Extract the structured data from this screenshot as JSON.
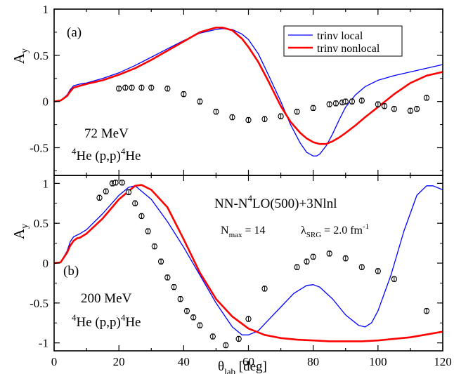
{
  "chart_data": [
    {
      "type": "line",
      "panel_label": "(a)",
      "energy_label": "72 MeV",
      "reaction": {
        "pre": "4",
        "mid": "He (p,p)",
        "post": "4",
        "tail": "He"
      },
      "ylabel": {
        "main": "A",
        "sub": "y"
      },
      "xlim": [
        0,
        120
      ],
      "ylim": [
        -0.8,
        1.0
      ],
      "yticks": [
        1,
        0.5,
        0,
        -0.5
      ],
      "ytick_labels": [
        "1",
        "0.5",
        "0",
        "-0.5"
      ],
      "legend": {
        "placement": "top-right",
        "entries": [
          "trinv local",
          "trinv nonlocal"
        ]
      },
      "series": [
        {
          "name": "trinv local",
          "color": "#0000ff",
          "x": [
            0,
            2,
            4,
            5,
            6,
            7,
            8,
            10,
            15,
            20,
            25,
            30,
            35,
            40,
            45,
            50,
            52,
            55,
            58,
            60,
            63,
            66,
            70,
            73,
            76,
            78,
            80,
            81,
            82,
            84,
            86,
            88,
            90,
            93,
            96,
            100,
            105,
            110,
            115,
            120
          ],
          "y": [
            0,
            0.01,
            0.07,
            0.13,
            0.17,
            0.18,
            0.19,
            0.2,
            0.25,
            0.31,
            0.39,
            0.48,
            0.57,
            0.66,
            0.74,
            0.78,
            0.79,
            0.78,
            0.73,
            0.67,
            0.52,
            0.3,
            0.0,
            -0.25,
            -0.45,
            -0.55,
            -0.59,
            -0.59,
            -0.57,
            -0.48,
            -0.35,
            -0.2,
            -0.06,
            0.07,
            0.16,
            0.23,
            0.28,
            0.32,
            0.36,
            0.4
          ]
        },
        {
          "name": "trinv nonlocal",
          "color": "#ff0000",
          "x": [
            0,
            2,
            4,
            5,
            6,
            7,
            8,
            10,
            15,
            20,
            25,
            30,
            35,
            40,
            45,
            50,
            52,
            55,
            58,
            60,
            63,
            66,
            70,
            73,
            76,
            78,
            80,
            82,
            84,
            86,
            88,
            90,
            93,
            96,
            100,
            105,
            110,
            115,
            120
          ],
          "y": [
            0,
            0.01,
            0.06,
            0.11,
            0.15,
            0.16,
            0.17,
            0.19,
            0.23,
            0.29,
            0.36,
            0.45,
            0.55,
            0.65,
            0.75,
            0.8,
            0.8,
            0.77,
            0.68,
            0.59,
            0.43,
            0.23,
            -0.05,
            -0.22,
            -0.34,
            -0.4,
            -0.44,
            -0.46,
            -0.46,
            -0.43,
            -0.39,
            -0.34,
            -0.26,
            -0.17,
            -0.06,
            0.08,
            0.2,
            0.28,
            0.32
          ]
        }
      ],
      "data_points": {
        "x": [
          20,
          22,
          24,
          27,
          30,
          35,
          40,
          45,
          50,
          55,
          60,
          65,
          70,
          75,
          80,
          85,
          87,
          89,
          90,
          92,
          95,
          100,
          102,
          105,
          110,
          112,
          115
        ],
        "y": [
          0.14,
          0.15,
          0.15,
          0.15,
          0.15,
          0.14,
          0.08,
          0.0,
          -0.11,
          -0.17,
          -0.2,
          -0.19,
          -0.16,
          -0.11,
          -0.07,
          -0.03,
          -0.02,
          -0.01,
          0.0,
          0.0,
          0.01,
          -0.03,
          -0.05,
          -0.08,
          -0.1,
          -0.08,
          0.04
        ]
      }
    },
    {
      "type": "line",
      "panel_label": "(b)",
      "energy_label": "200 MeV",
      "reaction": {
        "pre": "4",
        "mid": "He (p,p)",
        "post": "4",
        "tail": "He"
      },
      "ylabel": {
        "main": "A",
        "sub": "y"
      },
      "xlabel": {
        "main": "θ",
        "sub": "lab",
        "unit": " [deg]"
      },
      "xlim": [
        0,
        120
      ],
      "ylim": [
        -1.1,
        1.1
      ],
      "xticks": [
        0,
        20,
        40,
        60,
        80,
        100,
        120
      ],
      "xtick_labels": [
        "0",
        "20",
        "40",
        "60",
        "80",
        "100",
        "120"
      ],
      "yticks": [
        1,
        0.5,
        0,
        -0.5,
        -1
      ],
      "ytick_labels": [
        "1",
        "0.5",
        "0",
        "-0.5",
        "-1"
      ],
      "annotation": {
        "interaction": {
          "a": "NN-N",
          "sup": "4",
          "b": "LO(500)+3Nlnl"
        },
        "nmax": {
          "main": "N",
          "sub": "max",
          "rest": " = 14"
        },
        "srg": {
          "main": "λ",
          "sub": "SRG",
          "rest": " = 2.0 fm",
          "sup": "-1"
        }
      },
      "series": [
        {
          "name": "trinv local",
          "color": "#0000ff",
          "x": [
            0,
            2,
            4,
            5,
            6,
            7,
            8,
            10,
            15,
            20,
            23,
            25,
            30,
            35,
            40,
            45,
            50,
            55,
            58,
            60,
            63,
            66,
            70,
            74,
            78,
            80,
            82,
            86,
            90,
            94,
            96,
            98,
            100,
            104,
            108,
            112,
            115,
            117,
            120
          ],
          "y": [
            0,
            0.01,
            0.15,
            0.27,
            0.33,
            0.35,
            0.37,
            0.42,
            0.62,
            0.85,
            0.95,
            0.97,
            0.8,
            0.52,
            0.2,
            -0.15,
            -0.5,
            -0.8,
            -0.9,
            -0.9,
            -0.85,
            -0.72,
            -0.55,
            -0.38,
            -0.28,
            -0.27,
            -0.3,
            -0.45,
            -0.65,
            -0.78,
            -0.8,
            -0.75,
            -0.6,
            -0.15,
            0.4,
            0.85,
            0.97,
            0.97,
            0.92
          ]
        },
        {
          "name": "trinv nonlocal",
          "color": "#ff0000",
          "x": [
            0,
            2,
            4,
            5,
            6,
            7,
            8,
            10,
            15,
            20,
            25,
            27,
            30,
            35,
            40,
            45,
            50,
            55,
            60,
            65,
            70,
            75,
            80,
            85,
            90,
            95,
            100,
            110,
            120
          ],
          "y": [
            0,
            0.01,
            0.13,
            0.22,
            0.28,
            0.31,
            0.32,
            0.37,
            0.56,
            0.8,
            0.97,
            0.98,
            0.92,
            0.7,
            0.3,
            -0.12,
            -0.45,
            -0.67,
            -0.82,
            -0.9,
            -0.94,
            -0.96,
            -0.97,
            -0.98,
            -0.98,
            -0.98,
            -0.97,
            -0.93,
            -0.86
          ]
        }
      ],
      "data_points": {
        "x": [
          14,
          16,
          18,
          19,
          21,
          23,
          25,
          27,
          29,
          31,
          33,
          35,
          37,
          39,
          41,
          43,
          45,
          49,
          53,
          57,
          60,
          65,
          75,
          78,
          80,
          85,
          90,
          95,
          100,
          105,
          115
        ],
        "y": [
          0.82,
          0.9,
          1.0,
          1.01,
          1.01,
          0.89,
          0.75,
          0.59,
          0.4,
          0.21,
          0.02,
          -0.18,
          -0.3,
          -0.45,
          -0.6,
          -0.68,
          -0.78,
          -0.92,
          -1.03,
          -0.95,
          -0.7,
          -0.32,
          -0.05,
          0.02,
          0.08,
          0.12,
          0.06,
          -0.05,
          -0.1,
          -0.2,
          -0.6
        ]
      }
    }
  ]
}
